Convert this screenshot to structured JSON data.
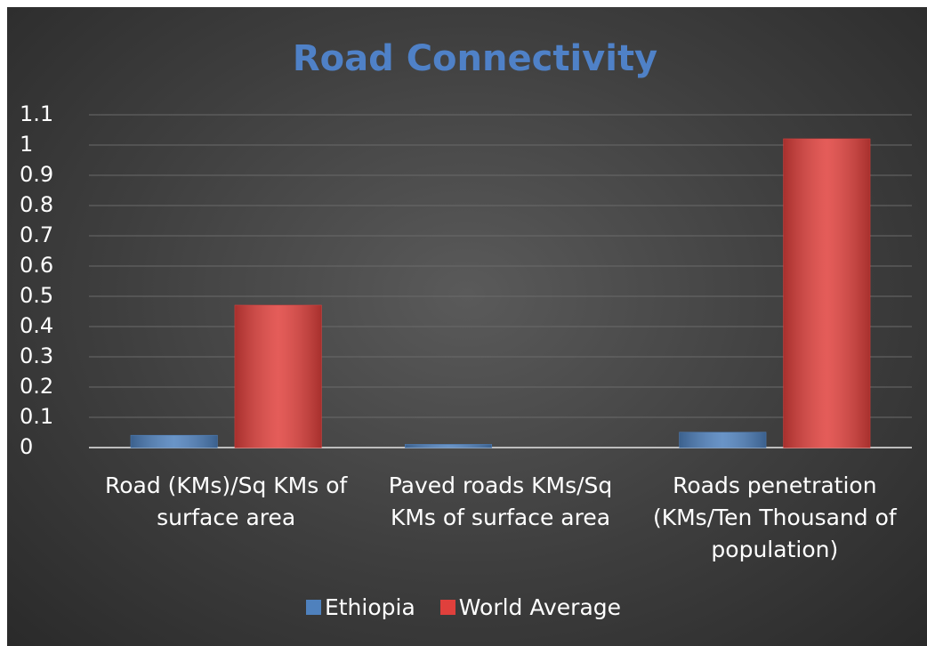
{
  "chart_data": {
    "type": "bar",
    "title": "Road Connectivity",
    "categories": [
      "Road (KMs)/Sq KMs of surface area",
      "Paved roads KMs/Sq KMs of surface area",
      "Roads penetration (KMs/Ten Thousand of population)"
    ],
    "series": [
      {
        "name": "Ethiopia",
        "color": "#4f81bd",
        "values": [
          0.04,
          0.01,
          0.05
        ]
      },
      {
        "name": "World Average",
        "color": "#e0403c",
        "values": [
          0.47,
          null,
          1.02
        ]
      }
    ],
    "ylim": [
      0,
      1.1
    ],
    "yticks": [
      0,
      0.1,
      0.2,
      0.3,
      0.4,
      0.5,
      0.6,
      0.7,
      0.8,
      0.9,
      1,
      1.1
    ],
    "grid": true,
    "legend": "bottom"
  }
}
